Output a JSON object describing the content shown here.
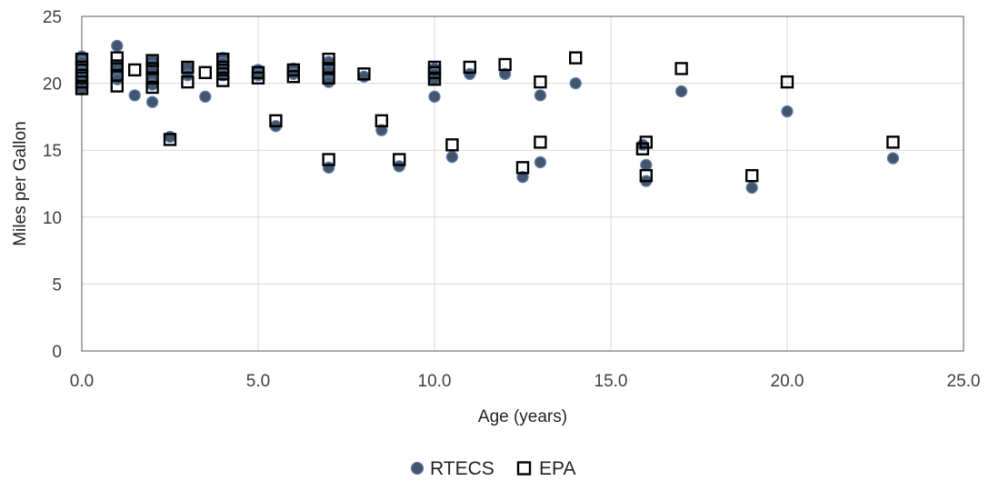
{
  "chart_data": {
    "type": "scatter",
    "title": "",
    "xlabel": "Age (years)",
    "ylabel": "Miles per Gallon",
    "xlim": [
      0,
      25
    ],
    "ylim": [
      0,
      25
    ],
    "xticks": [
      0,
      5,
      10,
      15,
      20,
      25
    ],
    "yticks": [
      0,
      5,
      10,
      15,
      20,
      25
    ],
    "xtick_labels": [
      "0.0",
      "5.0",
      "10.0",
      "15.0",
      "20.0",
      "25.0"
    ],
    "ytick_labels": [
      "0",
      "5",
      "10",
      "15",
      "20",
      "25"
    ],
    "grid": true,
    "legend_position": "bottom",
    "series": [
      {
        "name": "RTECS",
        "marker": "circle",
        "color": "#44546A",
        "edge_color": "#5B7FB3",
        "points": [
          [
            0,
            22.0
          ],
          [
            0,
            21.6
          ],
          [
            0,
            21.2
          ],
          [
            0,
            20.8
          ],
          [
            0,
            20.3
          ],
          [
            0,
            19.9
          ],
          [
            0,
            19.6
          ],
          [
            1,
            22.8
          ],
          [
            1,
            21.3
          ],
          [
            1,
            20.7
          ],
          [
            1,
            20.3
          ],
          [
            1.5,
            19.1
          ],
          [
            2,
            21.7
          ],
          [
            2,
            21.3
          ],
          [
            2,
            20.9
          ],
          [
            2,
            20.4
          ],
          [
            2,
            19.9
          ],
          [
            2,
            18.6
          ],
          [
            2.5,
            16.0
          ],
          [
            3,
            21.2
          ],
          [
            3,
            20.6
          ],
          [
            3.5,
            19.0
          ],
          [
            4,
            21.9
          ],
          [
            4,
            21.5
          ],
          [
            4,
            21.1
          ],
          [
            4,
            20.6
          ],
          [
            5,
            21.0
          ],
          [
            5,
            20.6
          ],
          [
            5.5,
            16.8
          ],
          [
            6,
            21.1
          ],
          [
            6,
            20.7
          ],
          [
            7,
            21.6
          ],
          [
            7,
            20.9
          ],
          [
            7,
            20.3
          ],
          [
            7,
            20.1
          ],
          [
            7,
            13.7
          ],
          [
            8,
            20.5
          ],
          [
            8.5,
            16.5
          ],
          [
            9,
            13.8
          ],
          [
            10,
            21.1
          ],
          [
            10,
            20.7
          ],
          [
            10,
            20.3
          ],
          [
            10,
            19.0
          ],
          [
            10.5,
            14.5
          ],
          [
            11,
            20.7
          ],
          [
            12,
            20.7
          ],
          [
            12.5,
            13.0
          ],
          [
            13,
            19.1
          ],
          [
            13,
            14.1
          ],
          [
            14,
            20.0
          ],
          [
            15.9,
            15.4
          ],
          [
            16,
            13.9
          ],
          [
            16,
            12.7
          ],
          [
            17,
            19.4
          ],
          [
            19,
            12.2
          ],
          [
            20,
            17.9
          ],
          [
            23,
            14.4
          ]
        ]
      },
      {
        "name": "EPA",
        "marker": "square",
        "color": "#000000",
        "edge_color": "#000000",
        "points": [
          [
            0,
            21.8
          ],
          [
            0,
            21.2
          ],
          [
            0,
            20.6
          ],
          [
            0,
            20.1
          ],
          [
            0,
            19.6
          ],
          [
            1,
            21.9
          ],
          [
            1,
            21.3
          ],
          [
            1,
            20.6
          ],
          [
            1,
            19.8
          ],
          [
            1.5,
            21.0
          ],
          [
            2,
            21.7
          ],
          [
            2,
            21.1
          ],
          [
            2,
            20.4
          ],
          [
            2,
            19.7
          ],
          [
            2.5,
            15.8
          ],
          [
            3,
            21.2
          ],
          [
            3,
            20.1
          ],
          [
            3.5,
            20.8
          ],
          [
            4,
            21.8
          ],
          [
            4,
            21.2
          ],
          [
            4,
            20.7
          ],
          [
            4,
            20.2
          ],
          [
            5,
            20.8
          ],
          [
            5,
            20.4
          ],
          [
            5.5,
            17.2
          ],
          [
            6,
            21.0
          ],
          [
            6,
            20.5
          ],
          [
            7,
            21.8
          ],
          [
            7,
            21.1
          ],
          [
            7,
            20.4
          ],
          [
            7,
            14.3
          ],
          [
            8,
            20.7
          ],
          [
            8.5,
            17.2
          ],
          [
            9,
            14.3
          ],
          [
            10,
            21.2
          ],
          [
            10,
            20.8
          ],
          [
            10,
            20.3
          ],
          [
            10.5,
            15.4
          ],
          [
            11,
            21.2
          ],
          [
            12,
            21.4
          ],
          [
            12.5,
            13.7
          ],
          [
            13,
            20.1
          ],
          [
            13,
            15.6
          ],
          [
            14,
            21.9
          ],
          [
            15.9,
            15.1
          ],
          [
            16,
            15.6
          ],
          [
            16,
            13.1
          ],
          [
            17,
            21.1
          ],
          [
            19,
            13.1
          ],
          [
            20,
            20.1
          ],
          [
            23,
            15.6
          ]
        ]
      }
    ]
  },
  "colors": {
    "grid": "#d9d9d9",
    "axis_border": "#595959",
    "background": "#ffffff"
  }
}
